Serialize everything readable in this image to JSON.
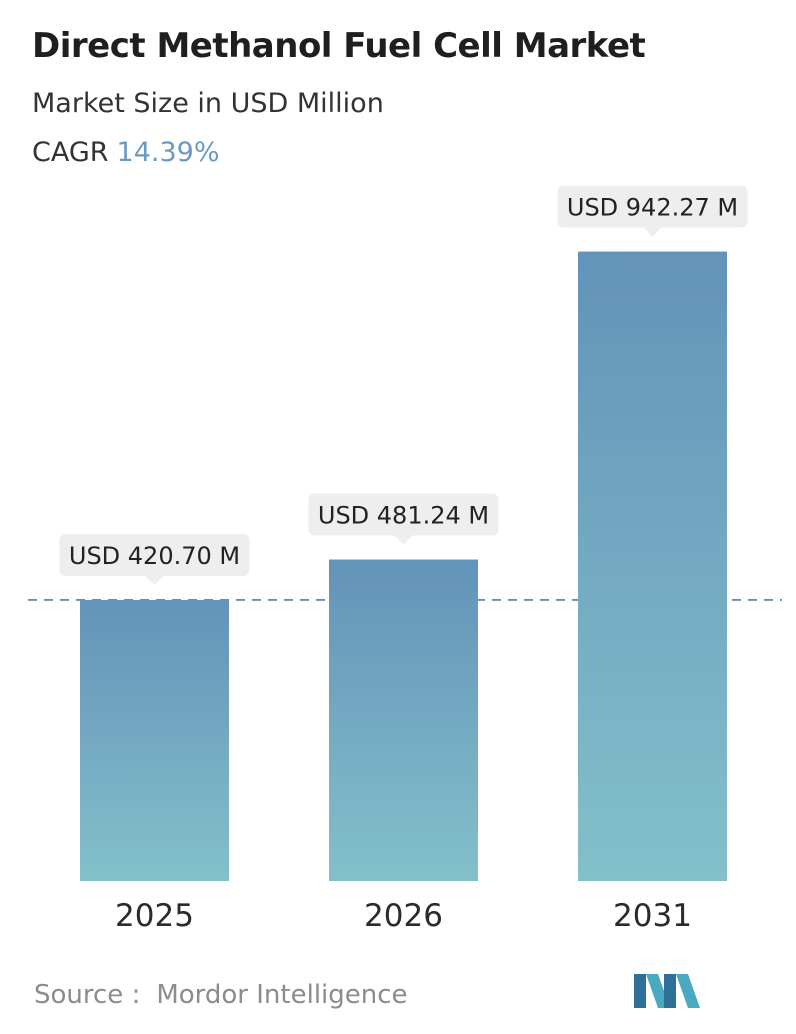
{
  "header": {
    "title": "Direct Methanol Fuel Cell Market",
    "subtitle": "Market Size in USD Million",
    "cagr_label": "CAGR",
    "cagr_value": "14.39%"
  },
  "chart_data": {
    "type": "bar",
    "title": "Direct Methanol Fuel Cell Market",
    "subtitle": "Market Size in USD Million",
    "categories": [
      "2025",
      "2026",
      "2031"
    ],
    "values": [
      420.7,
      481.24,
      942.27
    ],
    "data_labels": [
      "USD 420.70 M",
      "USD 481.24 M",
      "USD 942.27 M"
    ],
    "xlabel": "",
    "ylabel": "",
    "grid": false,
    "reference_line": {
      "value": 420.7,
      "style": "dashed"
    },
    "colors": {
      "bar_top": "#6393b9",
      "bar_bottom": "#83c0ca",
      "label_box": "#eeeeee",
      "reference_line": "#4f7fa6"
    }
  },
  "footer": {
    "source_label": "Source :",
    "source_name": "Mordor Intelligence",
    "logo_icon": "mordor-intelligence-logo-icon"
  }
}
